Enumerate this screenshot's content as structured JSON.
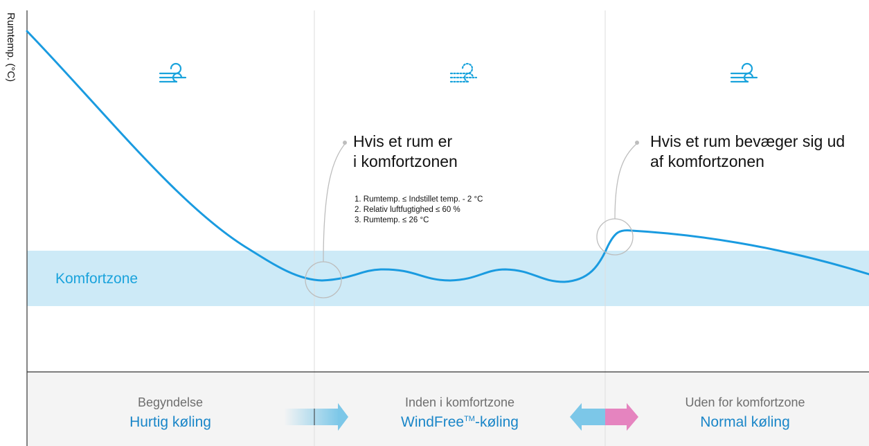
{
  "axis": {
    "y_label": "Rumtemp. (°C)"
  },
  "comfort_zone": {
    "label": "Komfortzone"
  },
  "callouts": [
    {
      "title": "Hvis et rum er\ni komfortzonen",
      "conditions": [
        "1. Rumtemp. ≤ Indstillet temp. - 2 °C",
        "2. Relativ luftfugtighed ≤ 60 %",
        "3. Rumtemp. ≤ 26 °C"
      ]
    },
    {
      "title": "Hvis et rum bevæger sig ud\naf komfortzonen"
    }
  ],
  "phases": [
    {
      "top": "Begyndelse",
      "main": "Hurtig køling",
      "icon": "wind-icon"
    },
    {
      "top": "Inden i komfortzone",
      "main_prefix": "WindFree",
      "main_tm": "TM",
      "main_suffix": "-køling",
      "icon": "windfree-icon"
    },
    {
      "top": "Uden for komfortzone",
      "main": "Normal køling",
      "icon": "wind-icon"
    }
  ],
  "colors": {
    "curve": "#1a9be0",
    "comfort_zone_fill": "#cdeaf7",
    "comfort_zone_text": "#1aa3dc",
    "phase_main_text": "#1a86c8",
    "arrow_pink": "#e584bf",
    "arrow_blue": "#7cc7e8"
  }
}
